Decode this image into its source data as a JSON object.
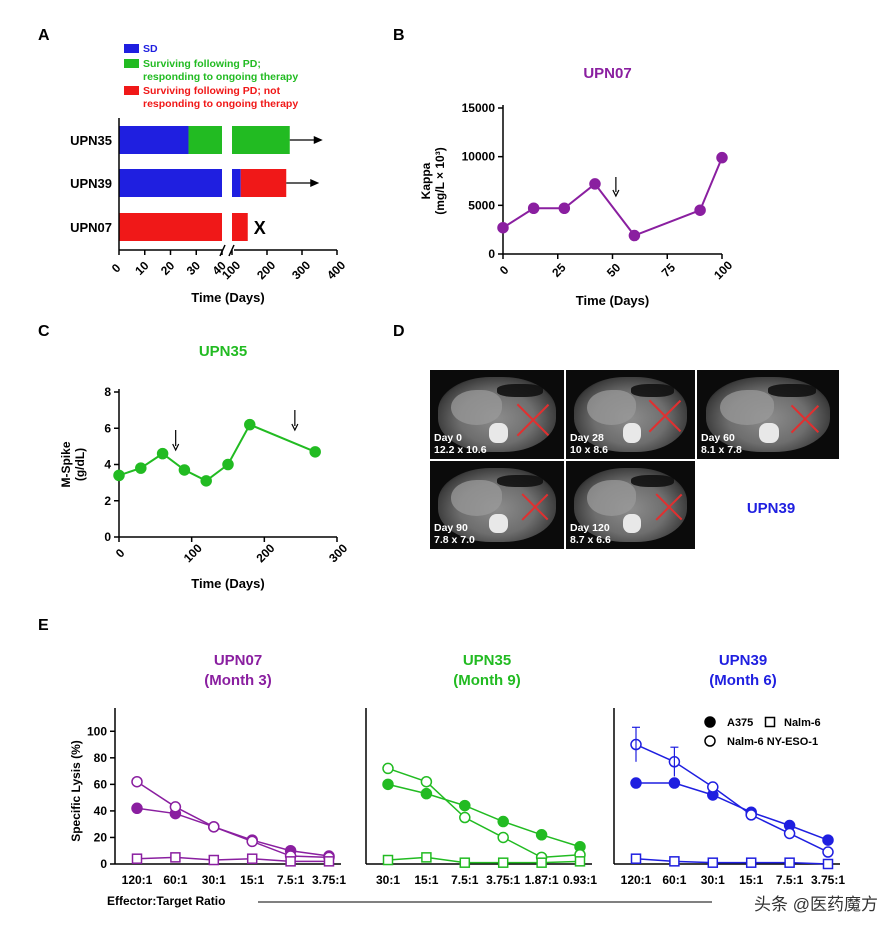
{
  "panel_letters": {
    "a": "A",
    "b": "B",
    "c": "C",
    "d": "D",
    "e": "E"
  },
  "colors": {
    "blue": "#1f1fe0",
    "green": "#22bb22",
    "red": "#f01818",
    "purple": "#8a1fa0"
  },
  "chart_data": [
    {
      "id": "A",
      "type": "bar",
      "orientation": "horizontal",
      "legend": [
        {
          "color": "#1f1fe0",
          "label_lines": [
            "SD"
          ]
        },
        {
          "color": "#22bb22",
          "label_lines": [
            "Surviving following PD;",
            "responding to ongoing therapy"
          ]
        },
        {
          "color": "#f01818",
          "label_lines": [
            "Surviving following PD; not",
            "responding to ongoing therapy"
          ]
        }
      ],
      "categories": [
        "UPN35",
        "UPN39",
        "UPN07"
      ],
      "segments": [
        [
          {
            "start": 0,
            "end": 27,
            "color": "#1f1fe0"
          },
          {
            "start": 27,
            "end": 40,
            "color": "#22bb22"
          },
          {
            "start": 100,
            "end": 265,
            "color": "#22bb22"
          }
        ],
        [
          {
            "start": 0,
            "end": 40,
            "color": "#1f1fe0"
          },
          {
            "start": 100,
            "end": 125,
            "color": "#1f1fe0"
          },
          {
            "start": 125,
            "end": 255,
            "color": "#f01818"
          }
        ],
        [
          {
            "start": 0,
            "end": 40,
            "color": "#f01818"
          },
          {
            "start": 100,
            "end": 145,
            "color": "#f01818"
          }
        ]
      ],
      "arrows": [
        "UPN35",
        "UPN39"
      ],
      "death_marker": {
        "category": "UPN07",
        "symbol": "X"
      },
      "xlabel": "Time (Days)",
      "x_ticks_left": [
        "0",
        "10",
        "20",
        "30",
        "40"
      ],
      "x_ticks_right": [
        "100",
        "200",
        "300",
        "400"
      ],
      "x_break": [
        40,
        100
      ]
    },
    {
      "id": "B",
      "type": "line",
      "title": "UPN07",
      "title_color": "#8a1fa0",
      "ylabel_lines": [
        "Kappa",
        "(mg/L × 10³)"
      ],
      "xlabel": "Time (Days)",
      "x": [
        0,
        14,
        28,
        42,
        60,
        90,
        100
      ],
      "y": [
        2700,
        4700,
        4700,
        7200,
        1900,
        4500,
        9900
      ],
      "xlim": [
        0,
        100
      ],
      "ylim": [
        0,
        15000
      ],
      "x_ticks": [
        "0",
        "25",
        "50",
        "75",
        "100"
      ],
      "y_ticks": [
        "0",
        "5000",
        "10000",
        "15000"
      ],
      "arrow_at": 52
    },
    {
      "id": "C",
      "type": "line",
      "title": "UPN35",
      "title_color": "#22bb22",
      "ylabel_lines": [
        "M-Spike",
        "(g/dL)"
      ],
      "xlabel": "Time (Days)",
      "x": [
        0,
        30,
        60,
        90,
        120,
        150,
        180,
        270
      ],
      "y": [
        3.4,
        3.8,
        4.6,
        3.7,
        3.1,
        4.0,
        6.2,
        4.7
      ],
      "xlim": [
        0,
        300
      ],
      "ylim": [
        0,
        8
      ],
      "x_ticks": [
        "0",
        "100",
        "200",
        "300"
      ],
      "y_ticks": [
        "0",
        "2",
        "4",
        "6",
        "8"
      ],
      "arrows_at": [
        78,
        242
      ]
    },
    {
      "id": "E",
      "type": "line",
      "ylabel": "Specific Lysis (%)",
      "xlabel": "Effector:Target Ratio",
      "y_ticks": [
        "0",
        "20",
        "40",
        "60",
        "80",
        "100"
      ],
      "ylim": [
        0,
        110
      ],
      "legend": [
        {
          "marker": "filled-circle",
          "label": "A375"
        },
        {
          "marker": "open-square",
          "label": "Nalm-6"
        },
        {
          "marker": "open-circle",
          "label": "Nalm-6 NY-ESO-1"
        }
      ],
      "panels": [
        {
          "title_lines": [
            "UPN07",
            "(Month 3)"
          ],
          "color": "#8a1fa0",
          "categories": [
            "120:1",
            "60:1",
            "30:1",
            "15:1",
            "7.5:1",
            "3.75:1"
          ],
          "series": [
            {
              "marker": "filled-circle",
              "values": [
                42,
                38,
                28,
                18,
                10,
                6
              ]
            },
            {
              "marker": "open-circle",
              "values": [
                62,
                43,
                28,
                17,
                6,
                5
              ]
            },
            {
              "marker": "open-square",
              "values": [
                4,
                5,
                3,
                4,
                2,
                2
              ]
            }
          ]
        },
        {
          "title_lines": [
            "UPN35",
            "(Month 9)"
          ],
          "color": "#22bb22",
          "categories": [
            "30:1",
            "15:1",
            "7.5:1",
            "3.75:1",
            "1.87:1",
            "0.93:1"
          ],
          "series": [
            {
              "marker": "filled-circle",
              "values": [
                60,
                53,
                44,
                32,
                22,
                13
              ]
            },
            {
              "marker": "open-circle",
              "values": [
                72,
                62,
                35,
                20,
                5,
                7
              ]
            },
            {
              "marker": "open-square",
              "values": [
                3,
                5,
                1,
                1,
                1,
                2
              ]
            }
          ]
        },
        {
          "title_lines": [
            "UPN39",
            "(Month 6)"
          ],
          "color": "#1f1fe0",
          "categories": [
            "120:1",
            "60:1",
            "30:1",
            "15:1",
            "7.5:1",
            "3.75:1"
          ],
          "series": [
            {
              "marker": "filled-circle",
              "values": [
                61,
                61,
                52,
                39,
                29,
                18
              ]
            },
            {
              "marker": "open-circle",
              "values": [
                90,
                77,
                58,
                37,
                23,
                9
              ]
            },
            {
              "marker": "open-square",
              "values": [
                4,
                2,
                1,
                1,
                1,
                0
              ]
            }
          ]
        }
      ]
    }
  ],
  "ct_panel": {
    "title": "UPN39",
    "title_color": "#1f1fe0",
    "scans": [
      {
        "day": "Day 0",
        "size": "12.2 x 10.6"
      },
      {
        "day": "Day 28",
        "size": "10 x 8.6"
      },
      {
        "day": "Day 60",
        "size": "8.1 x 7.8"
      },
      {
        "day": "Day 90",
        "size": "7.8 x 7.0"
      },
      {
        "day": "Day 120",
        "size": "8.7 x 6.6"
      }
    ]
  },
  "watermark": "头条 @医药魔方"
}
